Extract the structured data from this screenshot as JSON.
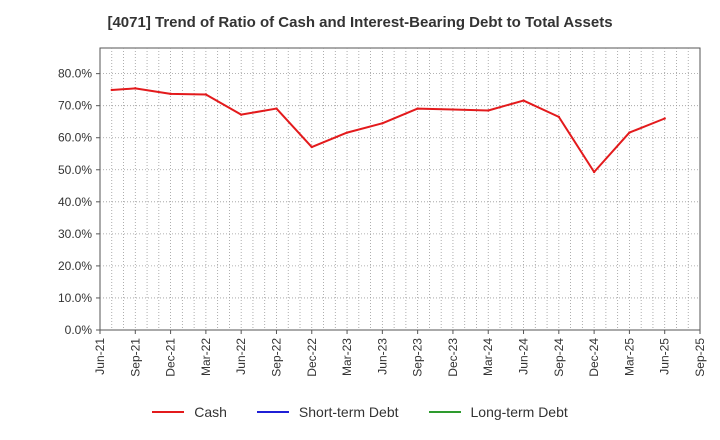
{
  "chart_data": {
    "type": "line",
    "title": "[4071]  Trend of Ratio of Cash and Interest-Bearing Debt to Total Assets",
    "xlabel": "",
    "ylabel": "",
    "ylim": [
      0,
      88
    ],
    "yticks": [
      "0.0%",
      "10.0%",
      "20.0%",
      "30.0%",
      "40.0%",
      "50.0%",
      "60.0%",
      "70.0%",
      "80.0%"
    ],
    "ytick_values": [
      0,
      10,
      20,
      30,
      40,
      50,
      60,
      70,
      80
    ],
    "xtick_labels": [
      "Jun-21",
      "Sep-21",
      "Dec-21",
      "Mar-22",
      "Jun-22",
      "Sep-22",
      "Dec-22",
      "Mar-23",
      "Jun-23",
      "Sep-23",
      "Dec-23",
      "Mar-24",
      "Jun-24",
      "Sep-24",
      "Dec-24",
      "Mar-25",
      "Jun-25",
      "Sep-25"
    ],
    "x_months_from_start": [
      1,
      3,
      6,
      9,
      12,
      15,
      18,
      21,
      24,
      27,
      30,
      33,
      36,
      39,
      42,
      45,
      48
    ],
    "series": [
      {
        "name": "Cash",
        "color": "#e31a1c",
        "values": [
          74.9,
          75.4,
          73.7,
          73.5,
          67.2,
          69.1,
          57.1,
          61.6,
          64.5,
          69.1,
          68.8,
          68.5,
          71.6,
          66.5,
          49.3,
          61.6,
          66.0
        ]
      },
      {
        "name": "Short-term Debt",
        "color": "#1f1fd6",
        "values": []
      },
      {
        "name": "Long-term Debt",
        "color": "#2e9b2e",
        "values": []
      }
    ],
    "grid": true,
    "legend_position": "bottom"
  }
}
